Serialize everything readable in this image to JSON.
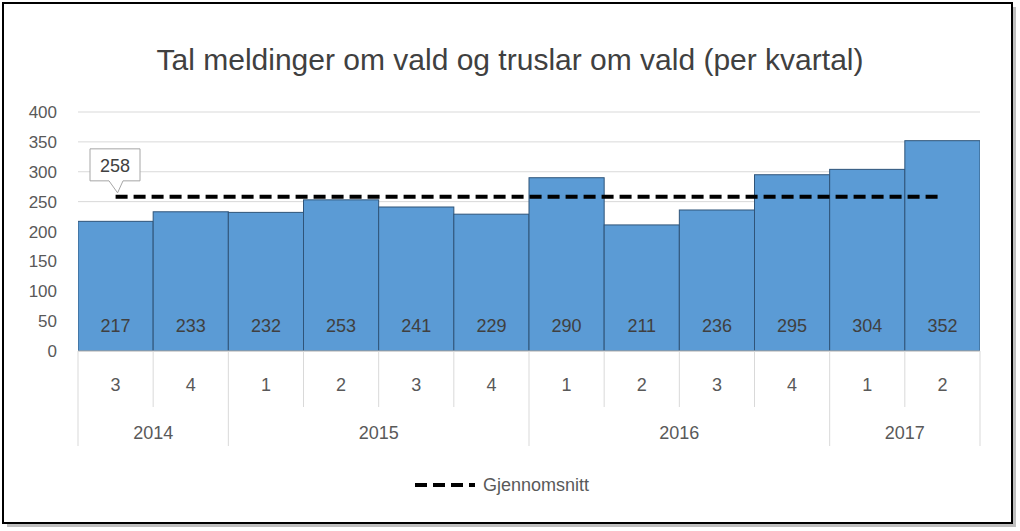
{
  "chart_data": {
    "type": "bar",
    "title": "Tal meldinger om vald og truslar om vald (per kvartal)",
    "categories": [
      "3",
      "4",
      "1",
      "2",
      "3",
      "4",
      "1",
      "2",
      "3",
      "4",
      "1",
      "2"
    ],
    "category_groups": [
      {
        "label": "2014",
        "span": 2
      },
      {
        "label": "2015",
        "span": 4
      },
      {
        "label": "2016",
        "span": 4
      },
      {
        "label": "2017",
        "span": 2
      }
    ],
    "series": [
      {
        "type": "bar",
        "color": "#5b9bd5",
        "data_labels": true,
        "values": [
          217,
          233,
          232,
          253,
          241,
          229,
          290,
          211,
          236,
          295,
          304,
          352
        ]
      },
      {
        "name": "Gjennomsnitt",
        "type": "line",
        "line_style": "dashed",
        "color": "#000000",
        "values": [
          258,
          258,
          258,
          258,
          258,
          258,
          258,
          258,
          258,
          258,
          258,
          258
        ]
      }
    ],
    "annotations": [
      {
        "text": "258",
        "y": 258
      }
    ],
    "ylim": [
      0,
      400
    ],
    "yticks": [
      0,
      50,
      100,
      150,
      200,
      250,
      300,
      350,
      400
    ],
    "grid": true,
    "legend": "bottom"
  }
}
